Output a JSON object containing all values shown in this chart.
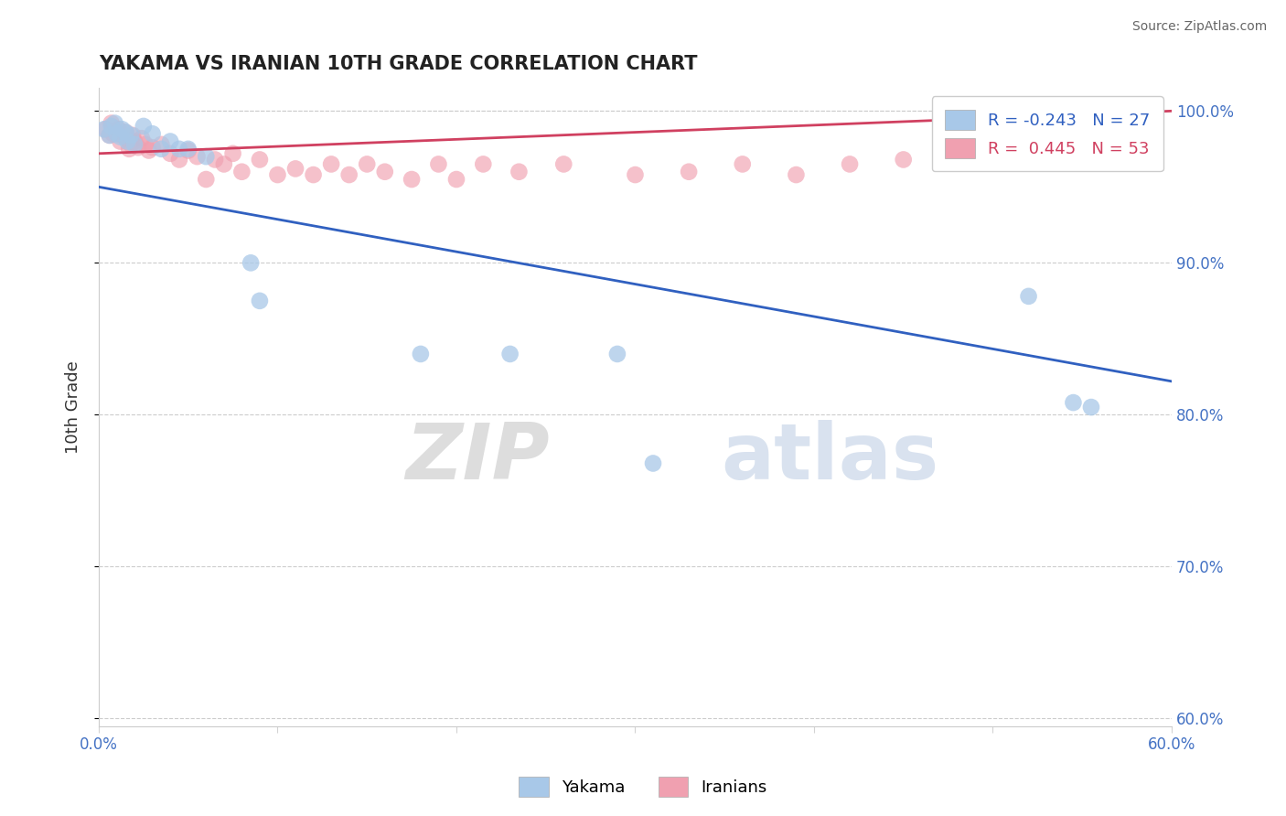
{
  "title": "YAKAMA VS IRANIAN 10TH GRADE CORRELATION CHART",
  "source": "Source: ZipAtlas.com",
  "ylabel": "10th Grade",
  "watermark_zip": "ZIP",
  "watermark_atlas": "atlas",
  "legend_labels": [
    "Yakama",
    "Iranians"
  ],
  "yakama_R": -0.243,
  "yakama_N": 27,
  "iranians_R": 0.445,
  "iranians_N": 53,
  "blue_color": "#A8C8E8",
  "pink_color": "#F0A0B0",
  "blue_line_color": "#3060C0",
  "pink_line_color": "#D04060",
  "xmin": 0.0,
  "xmax": 0.6,
  "ymin": 0.595,
  "ymax": 1.015,
  "yticks": [
    0.6,
    0.7,
    0.8,
    0.9,
    1.0
  ],
  "xticks": [
    0.0,
    0.1,
    0.2,
    0.3,
    0.4,
    0.5,
    0.6
  ],
  "blue_line_x0": 0.0,
  "blue_line_y0": 0.95,
  "blue_line_x1": 0.6,
  "blue_line_y1": 0.822,
  "pink_line_x0": 0.0,
  "pink_line_y0": 0.972,
  "pink_line_x1": 0.6,
  "pink_line_y1": 1.0,
  "blue_x": [
    0.003,
    0.006,
    0.007,
    0.009,
    0.01,
    0.012,
    0.013,
    0.015,
    0.016,
    0.018,
    0.02,
    0.025,
    0.03,
    0.035,
    0.04,
    0.045,
    0.05,
    0.06,
    0.085,
    0.09,
    0.18,
    0.23,
    0.29,
    0.31,
    0.52,
    0.545,
    0.555
  ],
  "blue_y": [
    0.988,
    0.984,
    0.99,
    0.992,
    0.985,
    0.983,
    0.988,
    0.986,
    0.98,
    0.984,
    0.978,
    0.99,
    0.985,
    0.975,
    0.98,
    0.975,
    0.975,
    0.97,
    0.9,
    0.875,
    0.84,
    0.84,
    0.84,
    0.768,
    0.878,
    0.808,
    0.805
  ],
  "pink_x": [
    0.004,
    0.006,
    0.007,
    0.008,
    0.01,
    0.011,
    0.012,
    0.013,
    0.015,
    0.016,
    0.017,
    0.018,
    0.019,
    0.02,
    0.022,
    0.024,
    0.026,
    0.028,
    0.03,
    0.035,
    0.04,
    0.045,
    0.05,
    0.055,
    0.06,
    0.065,
    0.07,
    0.075,
    0.08,
    0.09,
    0.1,
    0.11,
    0.12,
    0.13,
    0.14,
    0.15,
    0.16,
    0.175,
    0.19,
    0.2,
    0.215,
    0.235,
    0.26,
    0.3,
    0.33,
    0.36,
    0.39,
    0.42,
    0.45,
    0.55,
    0.565,
    0.575,
    0.585
  ],
  "pink_y": [
    0.988,
    0.984,
    0.992,
    0.985,
    0.986,
    0.988,
    0.98,
    0.984,
    0.986,
    0.982,
    0.975,
    0.978,
    0.984,
    0.98,
    0.976,
    0.982,
    0.978,
    0.974,
    0.976,
    0.978,
    0.972,
    0.968,
    0.974,
    0.97,
    0.955,
    0.968,
    0.965,
    0.972,
    0.96,
    0.968,
    0.958,
    0.962,
    0.958,
    0.965,
    0.958,
    0.965,
    0.96,
    0.955,
    0.965,
    0.955,
    0.965,
    0.96,
    0.965,
    0.958,
    0.96,
    0.965,
    0.958,
    0.965,
    0.968,
    0.985,
    0.988,
    0.993,
    0.997
  ]
}
